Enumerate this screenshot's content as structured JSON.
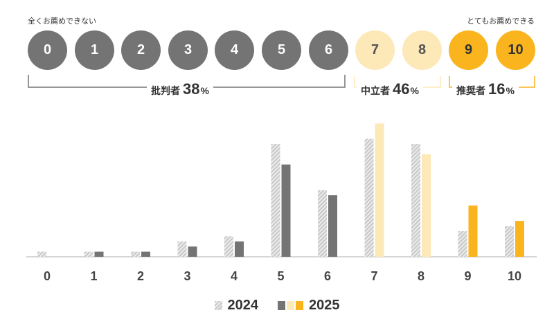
{
  "scale": {
    "low_label": "全くお薦めできない",
    "high_label": "とてもお薦めできる",
    "scores": [
      "0",
      "1",
      "2",
      "3",
      "4",
      "5",
      "6",
      "7",
      "8",
      "9",
      "10"
    ]
  },
  "groups": {
    "detractors": {
      "name": "批判者",
      "pct": "38",
      "sym": "%"
    },
    "passives": {
      "name": "中立者",
      "pct": "46",
      "sym": "%"
    },
    "promoters": {
      "name": "推奨者",
      "pct": "16",
      "sym": "%"
    }
  },
  "colors": {
    "detractor": "#747474",
    "passive": "#fde8b8",
    "promoter": "#fab41e",
    "hatch": "#c8c8c8"
  },
  "chart_data": {
    "type": "bar",
    "categories": [
      "0",
      "1",
      "2",
      "3",
      "4",
      "5",
      "6",
      "7",
      "8",
      "9",
      "10"
    ],
    "series": [
      {
        "name": "2024",
        "values": [
          1,
          1,
          1,
          3,
          4,
          22,
          13,
          23,
          22,
          5,
          6
        ]
      },
      {
        "name": "2025",
        "values": [
          0,
          1,
          1,
          2,
          3,
          18,
          12,
          26,
          20,
          10,
          7
        ]
      }
    ],
    "ylim": [
      0,
      27
    ],
    "grid": false,
    "legend": "bottom-center"
  }
}
